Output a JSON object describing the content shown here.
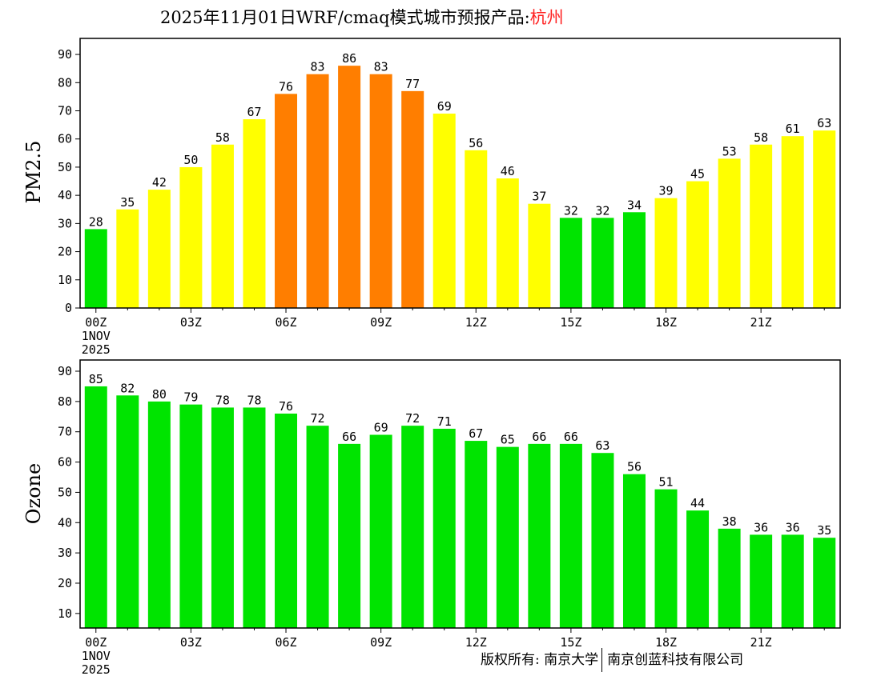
{
  "title": {
    "prefix": "2025年11月01日WRF/cmaq模式城市预报产品:",
    "city": "杭州"
  },
  "footer": {
    "left": "版权所有: 南京大学",
    "right": "南京创蓝科技有限公司"
  },
  "colors": {
    "green": "#00e400",
    "yellow": "#ffff00",
    "orange": "#ff7e00"
  },
  "chart_data": [
    {
      "type": "bar",
      "title": "",
      "ylabel": "PM2.5",
      "xlabel": "",
      "ylim": [
        0,
        95.7
      ],
      "yticks": [
        0,
        10,
        20,
        30,
        40,
        50,
        60,
        70,
        80,
        90
      ],
      "xtick_labels": [
        "00Z",
        "03Z",
        "06Z",
        "09Z",
        "12Z",
        "15Z",
        "18Z",
        "21Z"
      ],
      "xtick_every": 3,
      "date_label": [
        "1NOV",
        "2025"
      ],
      "values": [
        28,
        35,
        42,
        50,
        58,
        67,
        76,
        83,
        86,
        83,
        77,
        69,
        56,
        46,
        37,
        32,
        32,
        34,
        39,
        45,
        53,
        58,
        61,
        63
      ],
      "bar_colors": [
        "green",
        "yellow",
        "yellow",
        "yellow",
        "yellow",
        "yellow",
        "orange",
        "orange",
        "orange",
        "orange",
        "orange",
        "yellow",
        "yellow",
        "yellow",
        "yellow",
        "green",
        "green",
        "green",
        "yellow",
        "yellow",
        "yellow",
        "yellow",
        "yellow",
        "yellow"
      ]
    },
    {
      "type": "bar",
      "title": "",
      "ylabel": "Ozone",
      "xlabel": "",
      "ylim": [
        5.2,
        93.7
      ],
      "yticks": [
        10,
        20,
        30,
        40,
        50,
        60,
        70,
        80,
        90
      ],
      "xtick_labels": [
        "00Z",
        "03Z",
        "06Z",
        "09Z",
        "12Z",
        "15Z",
        "18Z",
        "21Z"
      ],
      "xtick_every": 3,
      "date_label": [
        "1NOV",
        "2025"
      ],
      "values": [
        85,
        82,
        80,
        79,
        78,
        78,
        76,
        72,
        66,
        69,
        72,
        71,
        67,
        65,
        66,
        66,
        63,
        56,
        51,
        44,
        38,
        36,
        36,
        35
      ],
      "bar_colors": [
        "green",
        "green",
        "green",
        "green",
        "green",
        "green",
        "green",
        "green",
        "green",
        "green",
        "green",
        "green",
        "green",
        "green",
        "green",
        "green",
        "green",
        "green",
        "green",
        "green",
        "green",
        "green",
        "green",
        "green"
      ]
    }
  ]
}
